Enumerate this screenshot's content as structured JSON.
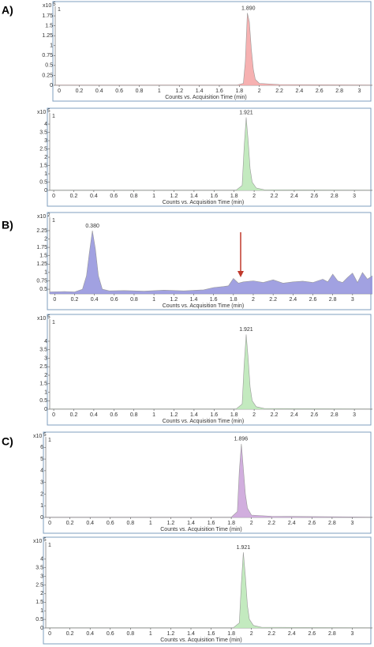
{
  "panel_labels": [
    "A)",
    "B)",
    "C)"
  ],
  "chart_data": [
    {
      "type": "area",
      "xlabel": "Counts vs. Acquisition Time (min)",
      "y_multiplier": {
        "base": "x10",
        "exponent": "5"
      },
      "trace_label": "1",
      "annotations": [
        {
          "label": "1.890",
          "x": 1.89,
          "color": "#c0392b"
        }
      ],
      "x": [
        -0.04,
        1.78,
        1.84,
        1.86,
        1.88,
        1.9,
        1.92,
        1.94,
        1.96,
        2.0,
        2.2,
        3.13
      ],
      "series": [
        {
          "color": "#f4a3a3",
          "values": [
            0.01,
            0.01,
            0.05,
            0.6,
            1.82,
            1.6,
            0.9,
            0.4,
            0.15,
            0.05,
            0.02,
            0.01
          ]
        }
      ],
      "xlim": [
        -0.04,
        3.13
      ],
      "ylim": [
        0,
        1.99
      ],
      "xticks": [
        0,
        0.2,
        0.4,
        0.6,
        0.8,
        1,
        1.2,
        1.4,
        1.6,
        1.8,
        2,
        2.2,
        2.4,
        2.6,
        2.8,
        3
      ],
      "yticks": [
        0,
        0.25,
        0.5,
        0.75,
        1,
        1.25,
        1.5,
        1.75
      ]
    },
    {
      "type": "area",
      "xlabel": "Counts vs. Acquisition Time (min)",
      "y_multiplier": {
        "base": "x10",
        "exponent": "5"
      },
      "trace_label": "1",
      "annotations": [
        {
          "label": "1.921",
          "x": 1.92,
          "color": "#4a9a3a"
        }
      ],
      "x": [
        -0.04,
        1.82,
        1.88,
        1.9,
        1.92,
        1.94,
        1.96,
        1.98,
        2.02,
        2.1,
        3.18
      ],
      "series": [
        {
          "color": "#b9e6b4",
          "values": [
            0.02,
            0.02,
            0.3,
            2.6,
            4.4,
            3.0,
            1.3,
            0.5,
            0.15,
            0.04,
            0.02
          ]
        }
      ],
      "xlim": [
        -0.04,
        3.18
      ],
      "ylim": [
        0,
        4.67
      ],
      "xticks": [
        0,
        0.2,
        0.4,
        0.6,
        0.8,
        1,
        1.2,
        1.4,
        1.6,
        1.8,
        2,
        2.2,
        2.4,
        2.6,
        2.8,
        3
      ],
      "yticks": [
        0,
        0.5,
        1,
        1.5,
        2,
        2.5,
        3,
        3.5,
        4
      ]
    },
    {
      "type": "area",
      "xlabel": "Counts vs. Acquisition Time (min)",
      "y_multiplier": {
        "base": "x10",
        "exponent": "2"
      },
      "trace_label": "1",
      "annotations": [
        {
          "label": "0.380",
          "x": 0.38,
          "color": "#333399"
        }
      ],
      "x": [
        -0.05,
        0.1,
        0.2,
        0.28,
        0.32,
        0.35,
        0.38,
        0.41,
        0.44,
        0.48,
        0.55,
        0.7,
        0.9,
        1.1,
        1.3,
        1.5,
        1.6,
        1.7,
        1.75,
        1.8,
        1.85,
        1.9,
        2.0,
        2.1,
        2.2,
        2.3,
        2.4,
        2.5,
        2.6,
        2.7,
        2.75,
        2.8,
        2.85,
        2.9,
        2.95,
        3.0,
        3.05,
        3.1,
        3.15,
        3.2
      ],
      "series": [
        {
          "color": "#9090dc",
          "values": [
            0.42,
            0.43,
            0.42,
            0.5,
            0.9,
            1.6,
            2.25,
            1.7,
            0.9,
            0.5,
            0.45,
            0.46,
            0.44,
            0.47,
            0.45,
            0.48,
            0.55,
            0.58,
            0.6,
            0.82,
            0.68,
            0.72,
            0.75,
            0.7,
            0.78,
            0.68,
            0.72,
            0.74,
            0.7,
            0.8,
            0.72,
            0.95,
            0.75,
            0.7,
            0.85,
            0.98,
            0.7,
            1.0,
            0.8,
            0.9
          ]
        }
      ],
      "xlim": [
        -0.05,
        3.2
      ],
      "ylim": [
        0.36,
        2.65
      ],
      "xticks": [
        0,
        0.2,
        0.4,
        0.6,
        0.8,
        1,
        1.2,
        1.4,
        1.6,
        1.8,
        2,
        2.2,
        2.4,
        2.6,
        2.8,
        3
      ],
      "yticks": [
        0.5,
        0.75,
        1,
        1.25,
        1.5,
        1.75,
        2,
        2.25
      ]
    },
    {
      "type": "area",
      "xlabel": "Counts vs. Acquisition Time (min)",
      "y_multiplier": {
        "base": "x10",
        "exponent": "5"
      },
      "trace_label": "1",
      "annotations": [
        {
          "label": "1.921",
          "x": 1.92,
          "color": "#4a9a3a"
        }
      ],
      "x": [
        -0.04,
        1.82,
        1.88,
        1.9,
        1.92,
        1.94,
        1.96,
        1.98,
        2.02,
        2.1,
        3.18
      ],
      "series": [
        {
          "color": "#b9e6b4",
          "values": [
            0.02,
            0.02,
            0.3,
            2.6,
            4.4,
            3.0,
            1.3,
            0.5,
            0.15,
            0.04,
            0.02
          ]
        }
      ],
      "xlim": [
        -0.04,
        3.18
      ],
      "ylim": [
        0,
        5.3
      ],
      "xticks": [
        0,
        0.2,
        0.4,
        0.6,
        0.8,
        1,
        1.2,
        1.4,
        1.6,
        1.8,
        2,
        2.2,
        2.4,
        2.6,
        2.8,
        3
      ],
      "yticks": [
        0,
        0.5,
        1,
        1.5,
        2,
        2.5,
        3,
        3.5,
        4
      ]
    },
    {
      "type": "area",
      "xlabel": "Counts vs. Acquisition Time (min)",
      "y_multiplier": {
        "base": "x10",
        "exponent": "5"
      },
      "trace_label": "1",
      "annotations": [
        {
          "label": "1.896",
          "x": 1.896,
          "color": "#7a3a8f"
        }
      ],
      "x": [
        -0.04,
        1.8,
        1.86,
        1.88,
        1.9,
        1.92,
        1.94,
        1.96,
        2.0,
        2.2,
        3.2
      ],
      "series": [
        {
          "color": "#c9a0d8",
          "values": [
            0.03,
            0.03,
            0.5,
            4.0,
            6.3,
            4.2,
            2.0,
            0.8,
            0.2,
            0.1,
            0.03
          ]
        }
      ],
      "xlim": [
        -0.04,
        3.2
      ],
      "ylim": [
        0,
        6.9
      ],
      "xticks": [
        0,
        0.2,
        0.4,
        0.6,
        0.8,
        1,
        1.2,
        1.4,
        1.6,
        1.8,
        2,
        2.2,
        2.4,
        2.6,
        2.8,
        3
      ],
      "yticks": [
        0,
        1,
        2,
        3,
        4,
        5,
        6
      ]
    },
    {
      "type": "area",
      "xlabel": "Counts vs. Acquisition Time (min)",
      "y_multiplier": {
        "base": "x10",
        "exponent": "5"
      },
      "trace_label": "1",
      "annotations": [
        {
          "label": "1.921",
          "x": 1.92,
          "color": "#4a9a3a"
        }
      ],
      "x": [
        -0.04,
        1.82,
        1.88,
        1.9,
        1.92,
        1.94,
        1.96,
        1.98,
        2.02,
        2.1,
        3.2
      ],
      "series": [
        {
          "color": "#b9e6b4",
          "values": [
            0.02,
            0.02,
            0.3,
            2.6,
            4.4,
            3.0,
            1.3,
            0.5,
            0.15,
            0.04,
            0.02
          ]
        }
      ],
      "xlim": [
        -0.04,
        3.2
      ],
      "ylim": [
        0,
        5.0
      ],
      "xticks": [
        0,
        0.2,
        0.4,
        0.6,
        0.8,
        1,
        1.2,
        1.4,
        1.6,
        1.8,
        2,
        2.2,
        2.4,
        2.6,
        2.8,
        3
      ],
      "yticks": [
        0,
        0.5,
        1,
        1.5,
        2,
        2.5,
        3,
        3.5,
        4
      ]
    }
  ]
}
